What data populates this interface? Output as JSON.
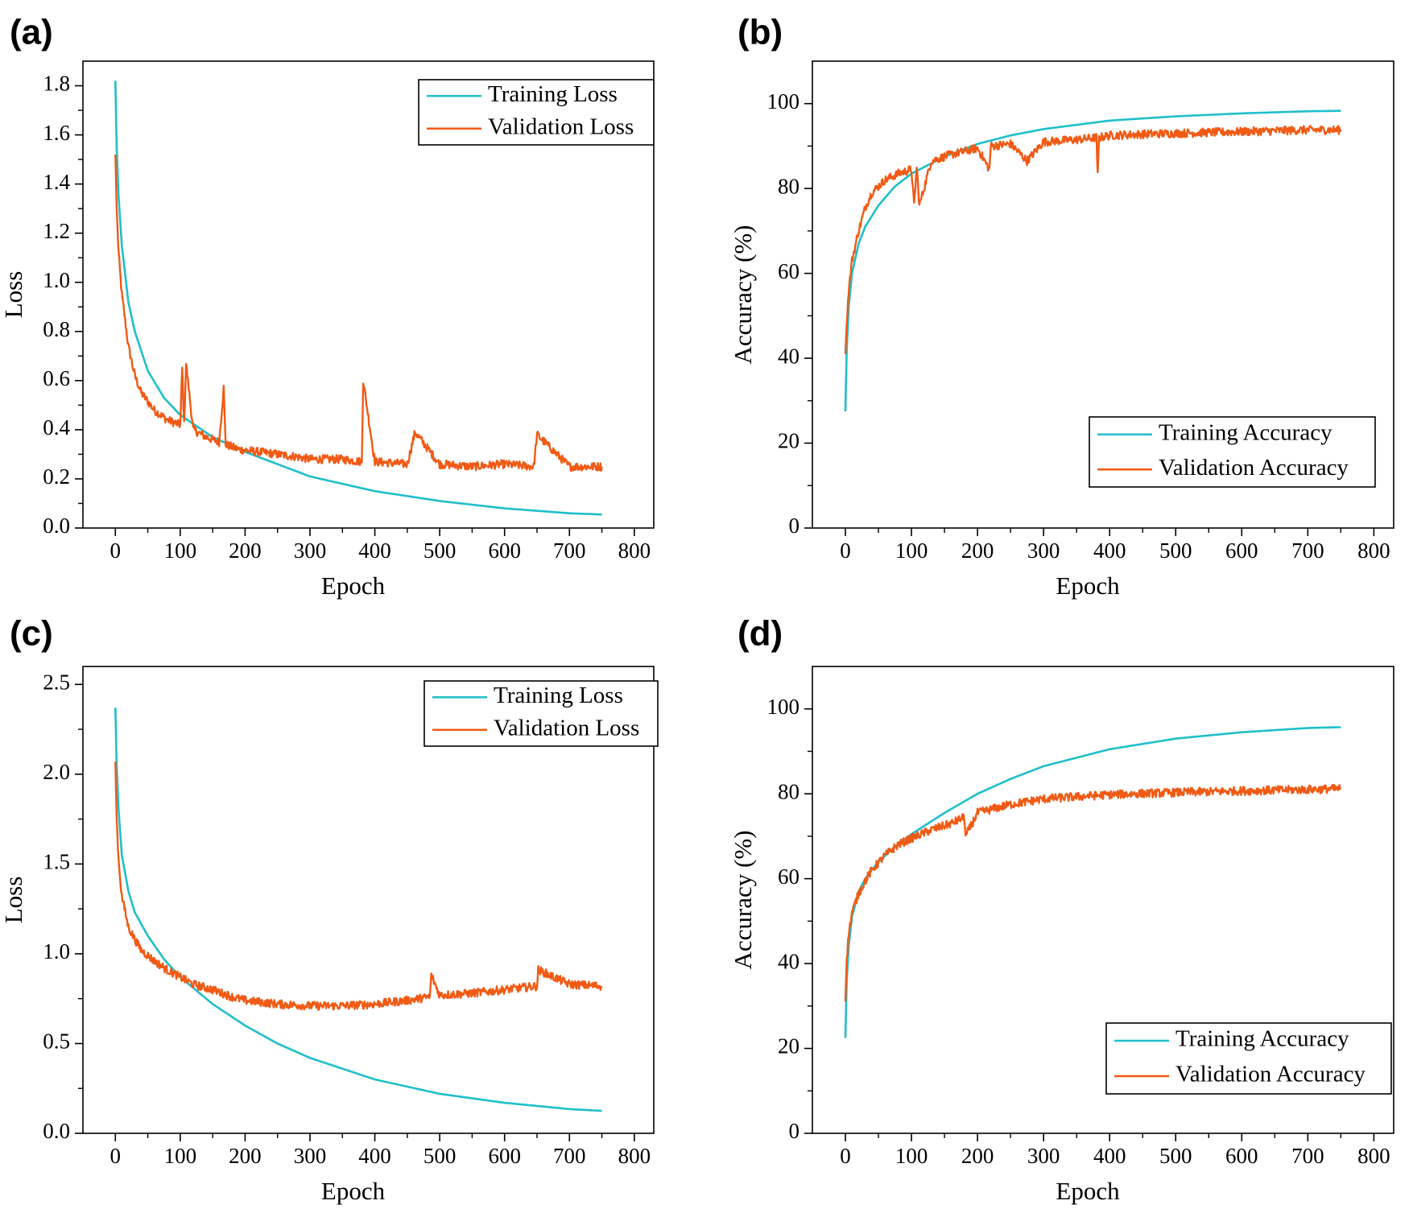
{
  "colors": {
    "training": "#1fbfc9",
    "validation": "#f05a14",
    "axis": "#000000"
  },
  "chart_data": [
    {
      "panel": "(a)",
      "type": "line",
      "title": "",
      "xlabel": "Epoch",
      "ylabel": "Loss",
      "xlim": [
        -50,
        830
      ],
      "ylim": [
        0.0,
        1.9
      ],
      "xticks": [
        0,
        100,
        200,
        300,
        400,
        500,
        600,
        700,
        800
      ],
      "yticks": [
        0.0,
        0.2,
        0.4,
        0.6,
        0.8,
        1.0,
        1.2,
        1.4,
        1.6,
        1.8
      ],
      "ytick_labels": [
        "0.0",
        "0.2",
        "0.4",
        "0.6",
        "0.8",
        "1.0",
        "1.2",
        "1.4",
        "1.6",
        "1.8"
      ],
      "legend_position": "top-right",
      "series": [
        {
          "name": "Training Loss",
          "color_key": "training",
          "x": [
            0,
            2,
            5,
            10,
            20,
            30,
            50,
            75,
            100,
            150,
            200,
            250,
            300,
            400,
            500,
            600,
            700,
            750
          ],
          "y": [
            1.82,
            1.55,
            1.35,
            1.15,
            0.92,
            0.8,
            0.64,
            0.53,
            0.46,
            0.37,
            0.31,
            0.26,
            0.21,
            0.15,
            0.11,
            0.08,
            0.06,
            0.055
          ]
        },
        {
          "name": "Validation Loss",
          "color_key": "validation",
          "x": [
            0,
            2,
            5,
            10,
            20,
            30,
            40,
            60,
            80,
            100,
            103,
            106,
            109,
            120,
            140,
            160,
            167,
            170,
            190,
            220,
            250,
            280,
            300,
            350,
            380,
            382,
            400,
            450,
            462,
            500,
            550,
            600,
            645,
            650,
            700,
            750
          ],
          "y": [
            1.52,
            1.3,
            1.12,
            0.95,
            0.74,
            0.62,
            0.55,
            0.48,
            0.44,
            0.42,
            0.65,
            0.42,
            0.67,
            0.4,
            0.37,
            0.35,
            0.57,
            0.34,
            0.32,
            0.31,
            0.3,
            0.29,
            0.28,
            0.28,
            0.27,
            0.6,
            0.27,
            0.26,
            0.39,
            0.26,
            0.25,
            0.26,
            0.25,
            0.38,
            0.25,
            0.25
          ]
        }
      ]
    },
    {
      "panel": "(b)",
      "type": "line",
      "title": "",
      "xlabel": "Epoch",
      "ylabel": "Accuracy (%)",
      "xlim": [
        -50,
        830
      ],
      "ylim": [
        0,
        110
      ],
      "xticks": [
        0,
        100,
        200,
        300,
        400,
        500,
        600,
        700,
        800
      ],
      "yticks": [
        0,
        20,
        40,
        60,
        80,
        100
      ],
      "ytick_labels": [
        "0",
        "20",
        "40",
        "60",
        "80",
        "100"
      ],
      "legend_position": "bottom-right",
      "series": [
        {
          "name": "Training Accuracy",
          "color_key": "training",
          "x": [
            0,
            2,
            5,
            10,
            20,
            30,
            50,
            75,
            100,
            150,
            200,
            250,
            300,
            400,
            500,
            600,
            700,
            750
          ],
          "y": [
            27.5,
            42,
            52,
            60,
            67,
            71,
            76,
            80.5,
            83.5,
            87.5,
            90.5,
            92.5,
            94,
            96,
            97,
            97.7,
            98.2,
            98.3
          ]
        },
        {
          "name": "Validation Accuracy",
          "color_key": "validation",
          "x": [
            0,
            2,
            5,
            10,
            20,
            30,
            40,
            60,
            80,
            100,
            104,
            108,
            112,
            130,
            160,
            200,
            218,
            220,
            250,
            275,
            300,
            350,
            380,
            382,
            384,
            400,
            450,
            500,
            550,
            600,
            650,
            700,
            750
          ],
          "y": [
            41,
            48,
            56,
            63,
            70,
            75.5,
            79,
            82,
            83.5,
            84.5,
            76,
            85,
            76,
            86.5,
            88,
            89.5,
            84.5,
            90,
            90.5,
            86.5,
            91,
            91.5,
            92,
            83,
            92,
            92.5,
            92.8,
            93,
            93.2,
            93.4,
            93.6,
            93.8,
            93.8
          ]
        }
      ]
    },
    {
      "panel": "(c)",
      "type": "line",
      "title": "",
      "xlabel": "Epoch",
      "ylabel": "Loss",
      "xlim": [
        -50,
        830
      ],
      "ylim": [
        0.0,
        2.6
      ],
      "xticks": [
        0,
        100,
        200,
        300,
        400,
        500,
        600,
        700,
        800
      ],
      "yticks": [
        0.0,
        0.5,
        1.0,
        1.5,
        2.0,
        2.5
      ],
      "ytick_labels": [
        "0.0",
        "0.5",
        "1.0",
        "1.5",
        "2.0",
        "2.5"
      ],
      "legend_position": "top-right",
      "series": [
        {
          "name": "Training Loss",
          "color_key": "training",
          "x": [
            0,
            2,
            5,
            10,
            20,
            30,
            50,
            75,
            100,
            150,
            200,
            250,
            300,
            400,
            500,
            600,
            700,
            750
          ],
          "y": [
            2.37,
            2.05,
            1.8,
            1.55,
            1.35,
            1.23,
            1.1,
            0.97,
            0.87,
            0.72,
            0.6,
            0.5,
            0.42,
            0.3,
            0.22,
            0.17,
            0.135,
            0.125
          ]
        },
        {
          "name": "Validation Loss",
          "color_key": "validation",
          "x": [
            0,
            2,
            5,
            10,
            20,
            30,
            40,
            60,
            80,
            100,
            120,
            150,
            180,
            200,
            250,
            300,
            350,
            400,
            450,
            485,
            487,
            500,
            550,
            600,
            650,
            652,
            700,
            750
          ],
          "y": [
            2.07,
            1.75,
            1.52,
            1.32,
            1.15,
            1.08,
            1.02,
            0.96,
            0.91,
            0.87,
            0.83,
            0.8,
            0.76,
            0.74,
            0.72,
            0.71,
            0.71,
            0.72,
            0.74,
            0.76,
            0.88,
            0.77,
            0.78,
            0.8,
            0.82,
            0.91,
            0.83,
            0.82
          ]
        }
      ]
    },
    {
      "panel": "(d)",
      "type": "line",
      "title": "",
      "xlabel": "Epoch",
      "ylabel": "Accuracy (%)",
      "xlim": [
        -50,
        830
      ],
      "ylim": [
        0,
        110
      ],
      "xticks": [
        0,
        100,
        200,
        300,
        400,
        500,
        600,
        700,
        800
      ],
      "yticks": [
        0,
        20,
        40,
        60,
        80,
        100
      ],
      "ytick_labels": [
        "0",
        "20",
        "40",
        "60",
        "80",
        "100"
      ],
      "legend_position": "bottom-right",
      "series": [
        {
          "name": "Training Accuracy",
          "color_key": "training",
          "x": [
            0,
            2,
            5,
            10,
            20,
            30,
            50,
            75,
            100,
            150,
            200,
            250,
            300,
            400,
            500,
            600,
            700,
            750
          ],
          "y": [
            22.5,
            36,
            44,
            51,
            57,
            60,
            64,
            67.5,
            70.5,
            75.5,
            80,
            83.5,
            86.5,
            90.5,
            93,
            94.5,
            95.5,
            95.7
          ]
        },
        {
          "name": "Validation Accuracy",
          "color_key": "validation",
          "x": [
            0,
            2,
            5,
            10,
            20,
            30,
            40,
            60,
            80,
            100,
            130,
            160,
            180,
            182,
            200,
            250,
            300,
            400,
            500,
            600,
            700,
            750
          ],
          "y": [
            31,
            41,
            47,
            52,
            56.5,
            59.5,
            62,
            65.5,
            68,
            69.5,
            71.5,
            73,
            74.5,
            70,
            75.5,
            77.5,
            78.8,
            79.8,
            80.3,
            80.7,
            81,
            81.2
          ]
        }
      ]
    }
  ]
}
